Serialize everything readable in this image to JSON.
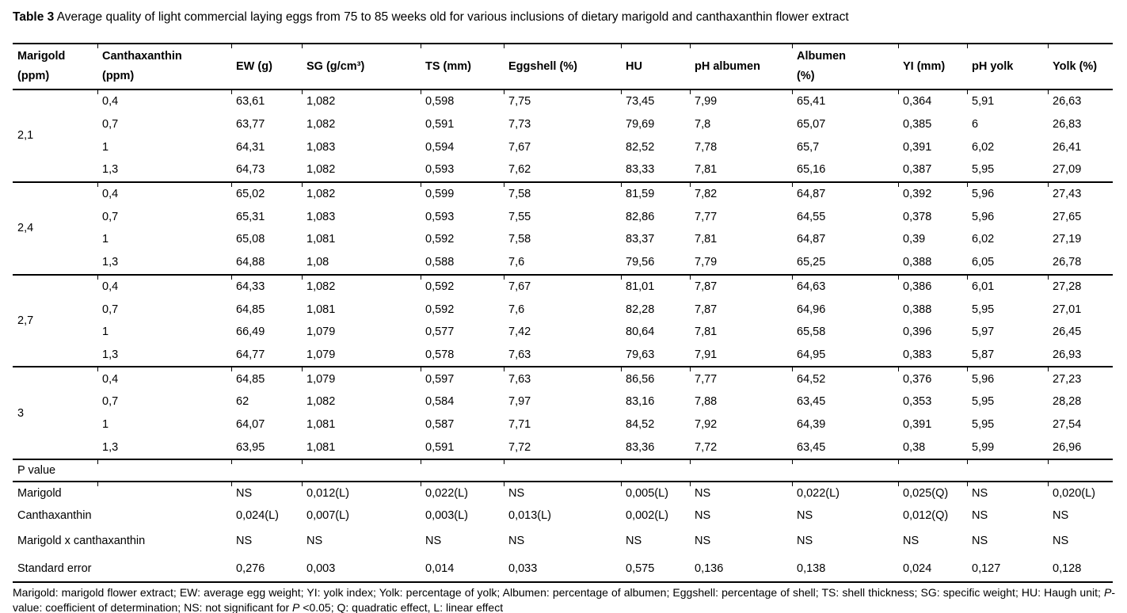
{
  "caption": {
    "label": "Table 3",
    "text": " Average quality of light commercial laying eggs from 75 to 85 weeks old for various inclusions of dietary marigold and canthaxanthin flower extract"
  },
  "table": {
    "headers": [
      {
        "id": "marigold",
        "line1": "Marigold",
        "line2": "(ppm)"
      },
      {
        "id": "canthaxanthin",
        "line1": "Canthaxanthin",
        "line2": "(ppm)"
      },
      {
        "id": "ew",
        "line1": "EW (g)",
        "line2": ""
      },
      {
        "id": "sg",
        "line1": "SG (g/cm³)",
        "line2": ""
      },
      {
        "id": "ts",
        "line1": "TS (mm)",
        "line2": ""
      },
      {
        "id": "eggshell",
        "line1": "Eggshell (%)",
        "line2": ""
      },
      {
        "id": "hu",
        "line1": "HU",
        "line2": ""
      },
      {
        "id": "ph-albumen",
        "line1": "pH albumen",
        "line2": ""
      },
      {
        "id": "albumen",
        "line1": "Albumen",
        "line2": "(%)"
      },
      {
        "id": "yi",
        "line1": "YI (mm)",
        "line2": ""
      },
      {
        "id": "ph-yolk",
        "line1": "pH yolk",
        "line2": ""
      },
      {
        "id": "yolk",
        "line1": "Yolk (%)",
        "line2": ""
      }
    ],
    "groups": [
      {
        "marigold": "2,1",
        "rows": [
          {
            "canthaxanthin": "0,4",
            "values": [
              "63,61",
              "1,082",
              "0,598",
              "7,75",
              "73,45",
              "7,99",
              "65,41",
              "0,364",
              "5,91",
              "26,63"
            ]
          },
          {
            "canthaxanthin": "0,7",
            "values": [
              "63,77",
              "1,082",
              "0,591",
              "7,73",
              "79,69",
              "7,8",
              "65,07",
              "0,385",
              "6",
              "26,83"
            ]
          },
          {
            "canthaxanthin": "1",
            "values": [
              "64,31",
              "1,083",
              "0,594",
              "7,67",
              "82,52",
              "7,78",
              "65,7",
              "0,391",
              "6,02",
              "26,41"
            ]
          },
          {
            "canthaxanthin": "1,3",
            "values": [
              "64,73",
              "1,082",
              "0,593",
              "7,62",
              "83,33",
              "7,81",
              "65,16",
              "0,387",
              "5,95",
              "27,09"
            ]
          }
        ]
      },
      {
        "marigold": "2,4",
        "rows": [
          {
            "canthaxanthin": "0,4",
            "values": [
              "65,02",
              "1,082",
              "0,599",
              "7,58",
              "81,59",
              "7,82",
              "64,87",
              "0,392",
              "5,96",
              "27,43"
            ]
          },
          {
            "canthaxanthin": "0,7",
            "values": [
              "65,31",
              "1,083",
              "0,593",
              "7,55",
              "82,86",
              "7,77",
              "64,55",
              "0,378",
              "5,96",
              "27,65"
            ]
          },
          {
            "canthaxanthin": "1",
            "values": [
              "65,08",
              "1,081",
              "0,592",
              "7,58",
              "83,37",
              "7,81",
              "64,87",
              "0,39",
              "6,02",
              "27,19"
            ]
          },
          {
            "canthaxanthin": "1,3",
            "values": [
              "64,88",
              "1,08",
              "0,588",
              "7,6",
              "79,56",
              "7,79",
              "65,25",
              "0,388",
              "6,05",
              "26,78"
            ]
          }
        ]
      },
      {
        "marigold": "2,7",
        "rows": [
          {
            "canthaxanthin": "0,4",
            "values": [
              "64,33",
              "1,082",
              "0,592",
              "7,67",
              "81,01",
              "7,87",
              "64,63",
              "0,386",
              "6,01",
              "27,28"
            ]
          },
          {
            "canthaxanthin": "0,7",
            "values": [
              "64,85",
              "1,081",
              "0,592",
              "7,6",
              "82,28",
              "7,87",
              "64,96",
              "0,388",
              "5,95",
              "27,01"
            ]
          },
          {
            "canthaxanthin": "1",
            "values": [
              "66,49",
              "1,079",
              "0,577",
              "7,42",
              "80,64",
              "7,81",
              "65,58",
              "0,396",
              "5,97",
              "26,45"
            ]
          },
          {
            "canthaxanthin": "1,3",
            "values": [
              "64,77",
              "1,079",
              "0,578",
              "7,63",
              "79,63",
              "7,91",
              "64,95",
              "0,383",
              "5,87",
              "26,93"
            ]
          }
        ]
      },
      {
        "marigold": "3",
        "rows": [
          {
            "canthaxanthin": "0,4",
            "values": [
              "64,85",
              "1,079",
              "0,597",
              "7,63",
              "86,56",
              "7,77",
              "64,52",
              "0,376",
              "5,96",
              "27,23"
            ]
          },
          {
            "canthaxanthin": "0,7",
            "values": [
              "62",
              "1,082",
              "0,584",
              "7,97",
              "83,16",
              "7,88",
              "63,45",
              "0,353",
              "5,95",
              "28,28"
            ]
          },
          {
            "canthaxanthin": "1",
            "values": [
              "64,07",
              "1,081",
              "0,587",
              "7,71",
              "84,52",
              "7,92",
              "64,39",
              "0,391",
              "5,95",
              "27,54"
            ]
          },
          {
            "canthaxanthin": "1,3",
            "values": [
              "63,95",
              "1,081",
              "0,591",
              "7,72",
              "83,36",
              "7,72",
              "63,45",
              "0,38",
              "5,99",
              "26,96"
            ]
          }
        ]
      }
    ],
    "p_section_label": "P value",
    "p_rows": [
      {
        "label": "Marigold",
        "values": [
          "NS",
          "0,012(L)",
          "0,022(L)",
          "NS",
          "0,005(L)",
          "NS",
          "0,022(L)",
          "0,025(Q)",
          "NS",
          "0,020(L)"
        ]
      },
      {
        "label": "Canthaxanthin",
        "values": [
          "0,024(L)",
          "0,007(L)",
          "0,003(L)",
          "0,013(L)",
          "0,002(L)",
          "NS",
          "NS",
          "0,012(Q)",
          "NS",
          "NS"
        ]
      },
      {
        "label": "Marigold x canthaxanthin",
        "values": [
          "NS",
          "NS",
          "NS",
          "NS",
          "NS",
          "NS",
          "NS",
          "NS",
          "NS",
          "NS"
        ]
      },
      {
        "label": "Standard error",
        "values": [
          "0,276",
          "0,003",
          "0,014",
          "0,033",
          "0,575",
          "0,136",
          "0,138",
          "0,024",
          "0,127",
          "0,128"
        ]
      }
    ]
  },
  "footnote": {
    "segments": [
      {
        "text": "Marigold: marigold flower extract; EW: average egg weight; YI: yolk index; Yolk: percentage of yolk; Albumen: percentage of albumen; Eggshell: percentage of shell; TS: shell thickness; SG: specific weight; HU: Haugh unit; ",
        "italic": false
      },
      {
        "text": "P",
        "italic": true
      },
      {
        "text": "-value: coefficient of determination; NS: not significant for ",
        "italic": false
      },
      {
        "text": "P",
        "italic": true
      },
      {
        "text": " <0.05; Q: quadratic effect, L: linear effect",
        "italic": false
      }
    ]
  }
}
